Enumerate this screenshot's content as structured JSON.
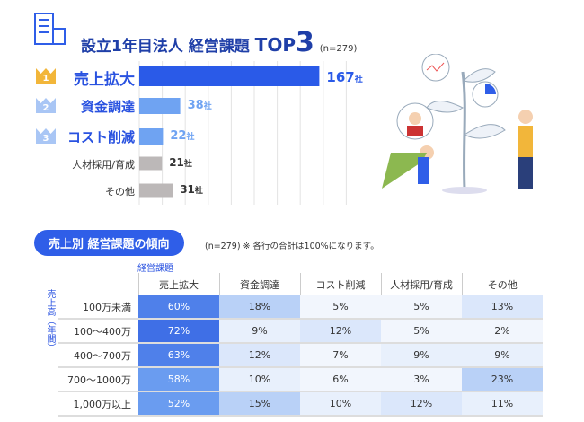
{
  "title": {
    "main": "設立1年目法人 経営課題",
    "top": "TOP",
    "num": "3",
    "n": "(n=279)"
  },
  "chart_data": [
    {
      "type": "bar",
      "title": "設立1年目法人 経営課題 TOP3",
      "categories": [
        "売上拡大",
        "資金調達",
        "コスト削減",
        "人材採用/育成",
        "その他"
      ],
      "values": [
        167,
        38,
        22,
        21,
        31
      ],
      "unit": "社",
      "ranks": [
        "1",
        "2",
        "3"
      ],
      "colors": [
        "#2a5ae8",
        "#6fa3f2",
        "#6fa3f2",
        "#bcb8b8",
        "#bcb8b8"
      ],
      "grid": true
    },
    {
      "type": "heatmap",
      "title": "売上別 経営課題の傾向",
      "note": "(n=279) ※ 各行の合計は100%になります。",
      "xlabel": "経営課題",
      "ylabel": "売上高（年間）",
      "columns": [
        "売上拡大",
        "資金調達",
        "コスト削減",
        "人材採用/育成",
        "その他"
      ],
      "rows": [
        "100万未満",
        "100〜400万",
        "400〜700万",
        "700〜1000万",
        "1,000万以上"
      ],
      "values": [
        [
          60,
          18,
          5,
          5,
          13
        ],
        [
          72,
          9,
          12,
          5,
          2
        ],
        [
          63,
          12,
          7,
          9,
          9
        ],
        [
          58,
          10,
          6,
          3,
          23
        ],
        [
          52,
          15,
          10,
          12,
          11
        ]
      ],
      "unit": "%"
    }
  ]
}
